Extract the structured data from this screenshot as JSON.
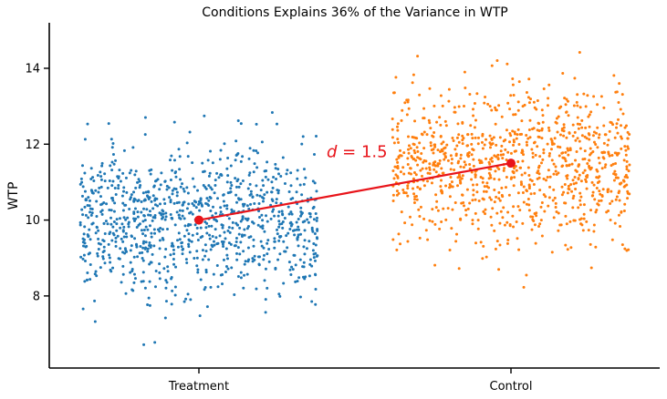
{
  "chart_data": {
    "type": "scatter",
    "title": "Conditions Explains 36% of the Variance in WTP",
    "xlabel": "",
    "ylabel": "WTP",
    "categories": [
      "Treatment",
      "Control"
    ],
    "ylim": [
      6.1,
      15.2
    ],
    "yticks": [
      8,
      10,
      12,
      14
    ],
    "grid": false,
    "legend": "none",
    "series": [
      {
        "category": "Treatment",
        "mean": 10.0,
        "sd": 1.0,
        "n": 1000,
        "jitter_width": 0.38,
        "color": "#1f77b4"
      },
      {
        "category": "Control",
        "mean": 11.5,
        "sd": 1.0,
        "n": 1000,
        "jitter_width": 0.38,
        "color": "#ff7f0e"
      }
    ],
    "mean_line": {
      "points": [
        {
          "category": "Treatment",
          "y": 10.0
        },
        {
          "category": "Control",
          "y": 11.5
        }
      ],
      "color": "#e8141a"
    },
    "annotation": {
      "italic": "d",
      "rest": " = 1.5",
      "x_position": 1.45,
      "y": 11.8
    }
  }
}
